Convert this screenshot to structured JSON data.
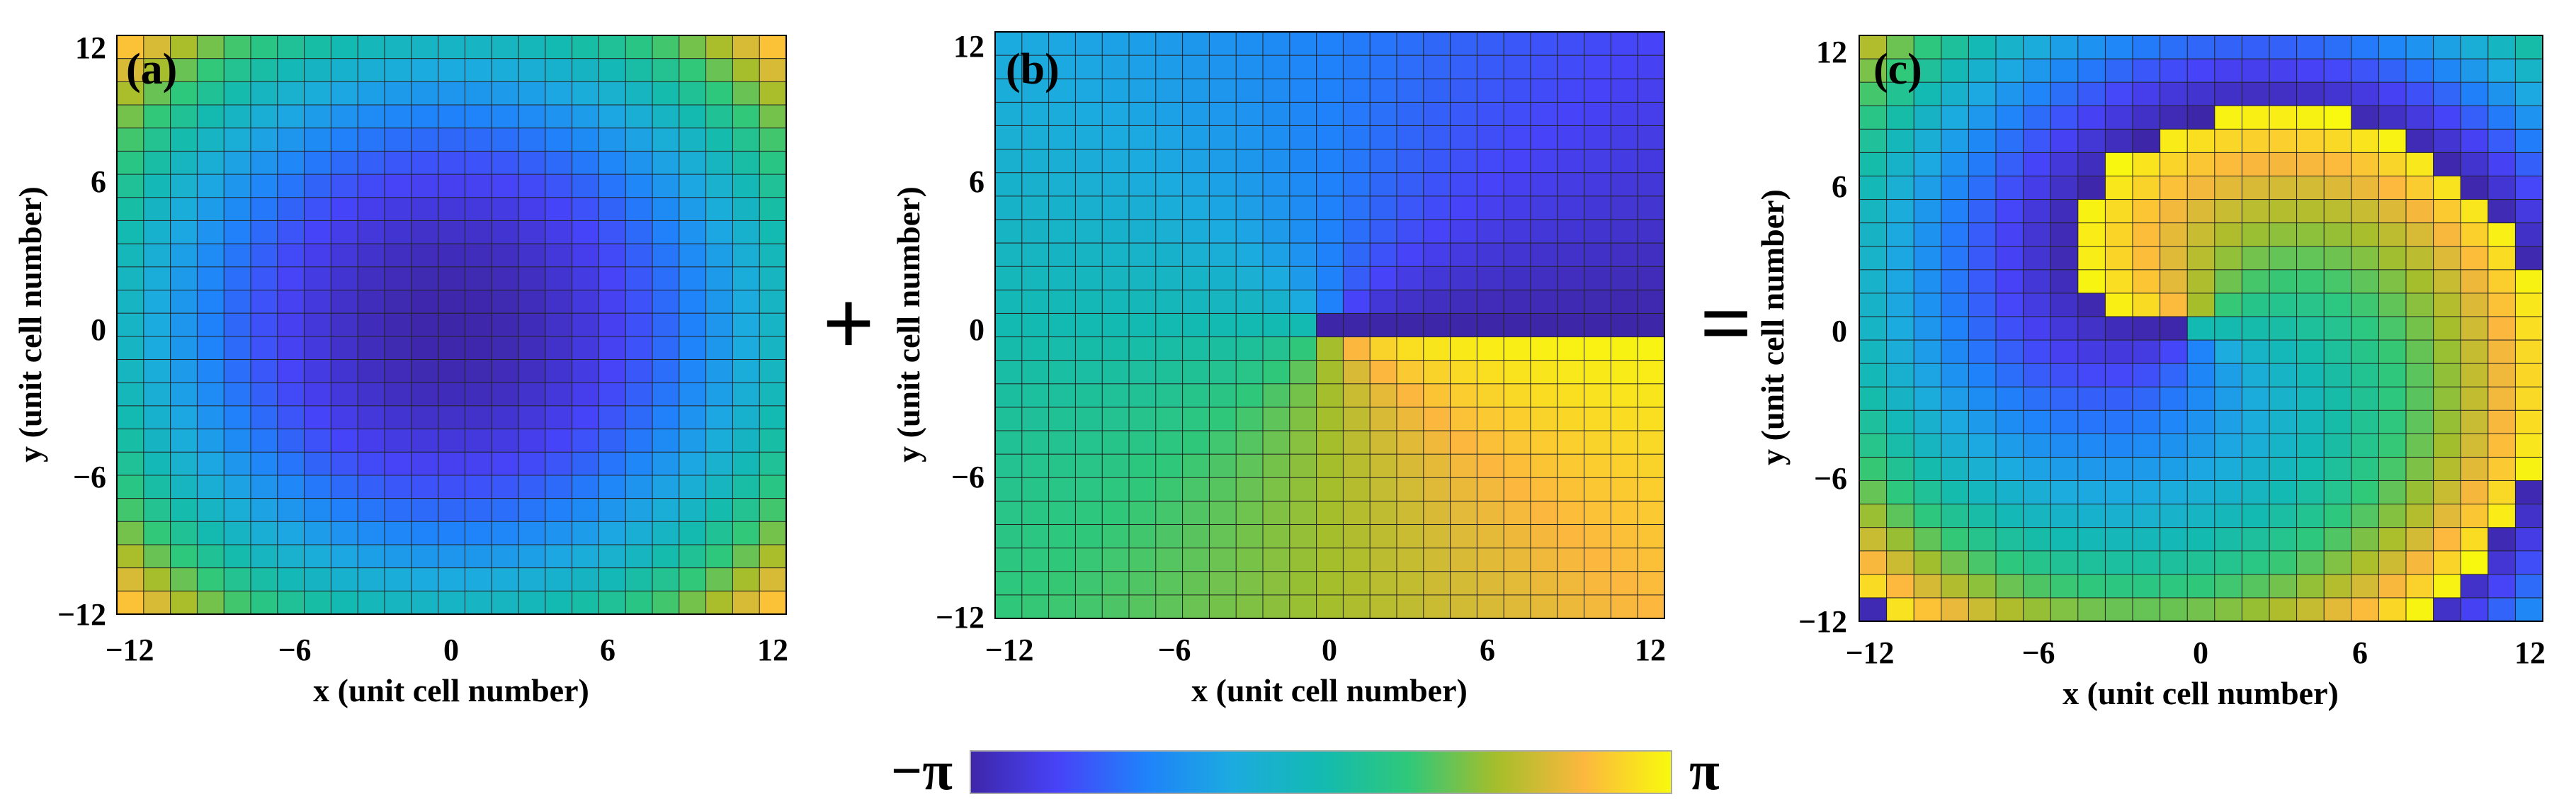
{
  "colormap": [
    "#3e26a8",
    "#4743f8",
    "#1f82fa",
    "#1cabdf",
    "#13bab1",
    "#2fc87a",
    "#a5be2b",
    "#fcb83e",
    "#f8fa0d"
  ],
  "operators": {
    "plus": "+",
    "equals": "="
  },
  "colorbar": {
    "min_label": "−π",
    "max_label": "π"
  },
  "chart_data": [
    {
      "type": "heatmap",
      "panel_label": "(a)",
      "field": "radial",
      "xlabel": "x (unit cell number)",
      "ylabel": "y (unit cell number)",
      "xlim": [
        -12,
        12
      ],
      "ylim": [
        -12,
        12
      ],
      "x_ticks": [
        -12,
        -6,
        0,
        6,
        12
      ],
      "y_ticks": [
        -12,
        -6,
        0,
        6,
        12
      ],
      "x_tick_labels": [
        "−12",
        "−6",
        "0",
        "6",
        "12"
      ],
      "y_tick_labels": [
        "−12",
        "−6",
        "0",
        "6",
        "12"
      ],
      "grid": "25x25",
      "value_range": [
        "-π",
        "π"
      ]
    },
    {
      "type": "heatmap",
      "panel_label": "(b)",
      "field": "azimuthal",
      "xlabel": "x (unit cell number)",
      "ylabel": "y (unit cell number)",
      "xlim": [
        -12,
        12
      ],
      "ylim": [
        -12,
        12
      ],
      "x_ticks": [
        -12,
        -6,
        0,
        6,
        12
      ],
      "y_ticks": [
        -12,
        -6,
        0,
        6,
        12
      ],
      "x_tick_labels": [
        "−12",
        "−6",
        "0",
        "6",
        "12"
      ],
      "y_tick_labels": [
        "−12",
        "−6",
        "0",
        "6",
        "12"
      ],
      "grid": "25x25",
      "value_range": [
        "-π",
        "π"
      ]
    },
    {
      "type": "heatmap",
      "panel_label": "(c)",
      "field": "sum",
      "xlabel": "x (unit cell number)",
      "ylabel": "y (unit cell number)",
      "xlim": [
        -12,
        12
      ],
      "ylim": [
        -12,
        12
      ],
      "x_ticks": [
        -12,
        -6,
        0,
        6,
        12
      ],
      "y_ticks": [
        -12,
        -6,
        0,
        6,
        12
      ],
      "x_tick_labels": [
        "−12",
        "−6",
        "0",
        "6",
        "12"
      ],
      "y_tick_labels": [
        "−12",
        "−6",
        "0",
        "6",
        "12"
      ],
      "grid": "25x25",
      "value_range": [
        "-π",
        "π"
      ]
    }
  ]
}
